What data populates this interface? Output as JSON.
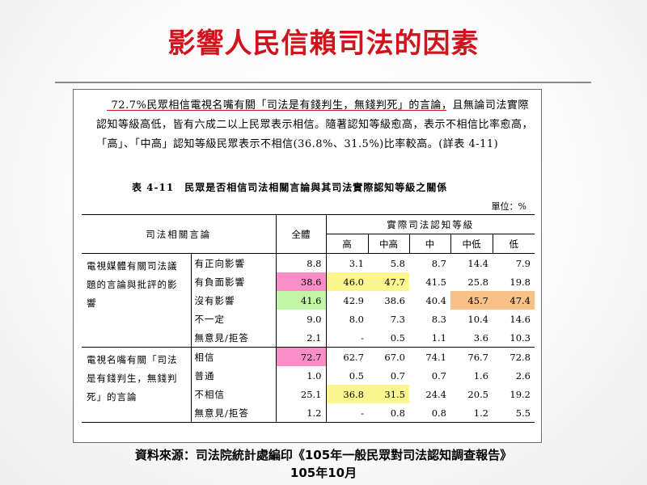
{
  "title": "影響人民信賴司法的因素",
  "paragraph": {
    "pre": "    ",
    "highlight": "72.7%民眾相信電視名嘴有關「司法是有錢判生，無錢判死」的言論",
    "rest": "，且無論司法實際認知等級高低，皆有六成二以上民眾表示相信。隨著認知等級愈高，表示不相信比率愈高，「高」、「中高」認知等級民眾表示不相信(36.8%、31.5%)比率較高。(詳表 4-11)"
  },
  "table": {
    "caption": "表 4-11　民眾是否相信司法相關言論與其司法實際認知等級之關係",
    "unit": "單位：%",
    "headers": {
      "topic": "司法相關言論",
      "total": "全體",
      "group": "實際司法認知等級",
      "levels": [
        "高",
        "中高",
        "中",
        "中低",
        "低"
      ]
    },
    "groups": [
      {
        "label": "電視媒體有關司法議題的言論與批評的影響",
        "rows": [
          {
            "label": "有正向影響",
            "values": [
              "8.8",
              "3.1",
              "5.8",
              "8.7",
              "14.4",
              "7.9"
            ]
          },
          {
            "label": "有負面影響",
            "values": [
              "38.6",
              "46.0",
              "47.7",
              "41.5",
              "25.8",
              "19.8"
            ]
          },
          {
            "label": "沒有影響",
            "values": [
              "41.6",
              "42.9",
              "38.6",
              "40.4",
              "45.7",
              "47.4"
            ]
          },
          {
            "label": "不一定",
            "values": [
              "9.0",
              "8.0",
              "7.3",
              "8.3",
              "10.4",
              "14.6"
            ]
          },
          {
            "label": "無意見/拒答",
            "values": [
              "2.1",
              "-",
              "0.5",
              "1.1",
              "3.6",
              "10.3"
            ]
          }
        ]
      },
      {
        "label": "電視名嘴有關「司法是有錢判生，無錢判死」的言論",
        "rows": [
          {
            "label": "相信",
            "values": [
              "72.7",
              "62.7",
              "67.0",
              "74.1",
              "76.7",
              "72.8"
            ]
          },
          {
            "label": "普通",
            "values": [
              "1.0",
              "0.5",
              "0.7",
              "0.7",
              "1.6",
              "2.6"
            ]
          },
          {
            "label": "不相信",
            "values": [
              "25.1",
              "36.8",
              "31.5",
              "24.4",
              "20.5",
              "19.2"
            ]
          },
          {
            "label": "無意見/拒答",
            "values": [
              "1.2",
              "-",
              "0.8",
              "0.8",
              "1.2",
              "5.5"
            ]
          }
        ]
      }
    ],
    "highlight_colors": {
      "pink": "#f98fc6",
      "yellow": "#fbf78e",
      "green": "#c3f5a6",
      "orange": "#f8c188"
    }
  },
  "source": {
    "line1": "資料來源：司法院統計處編印《105年一般民眾對司法認知調查報告》",
    "line2": "105年10月"
  }
}
